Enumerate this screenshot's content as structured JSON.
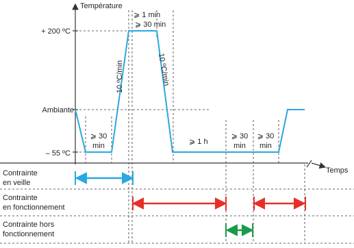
{
  "axis": {
    "y_title": "Température",
    "x_title": "Temps",
    "levels": [
      "+ 200 ºC",
      "Ambiante",
      "– 55 ºC"
    ]
  },
  "annotations": {
    "hold_1min": "⩾ 1 min",
    "hold_top": "⩾ 30 min",
    "ramp_up": "10 ºC/min",
    "ramp_down": "10 ºC/min",
    "hold_low": [
      "⩾ 30",
      "min"
    ],
    "hold_1h": "⩾ 1 h",
    "hold_a": [
      "⩾ 30",
      "min"
    ],
    "hold_b": [
      "⩾ 30",
      "min"
    ]
  },
  "rows": [
    [
      "Contrainte",
      "en veille"
    ],
    [
      "Contrainte",
      "en fonctionnement"
    ],
    [
      "Contrainte hors",
      "fonctionnement"
    ]
  ]
}
